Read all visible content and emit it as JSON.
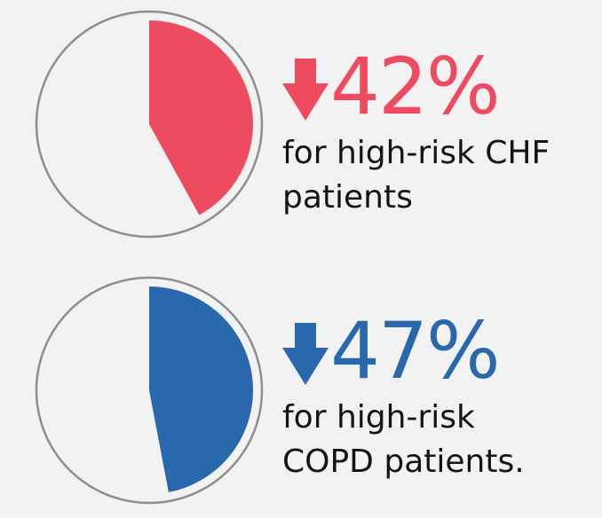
{
  "colors": {
    "chf": "#ee4b60",
    "copd": "#2a68ad",
    "ring": "#8e8e8e",
    "pie_bg": "#f2f2f2"
  },
  "icons": {
    "arrow": "down-arrow-icon"
  },
  "stats": [
    {
      "value_text": "42%",
      "caption_line1": "for high-risk CHF",
      "caption_line2": "patients"
    },
    {
      "value_text": "47%",
      "caption_line1": "for high-risk",
      "caption_line2": "COPD patients."
    }
  ],
  "chart_data": [
    {
      "type": "pie",
      "values": [
        42,
        58
      ]
    },
    {
      "type": "pie",
      "values": [
        47,
        53
      ]
    }
  ]
}
